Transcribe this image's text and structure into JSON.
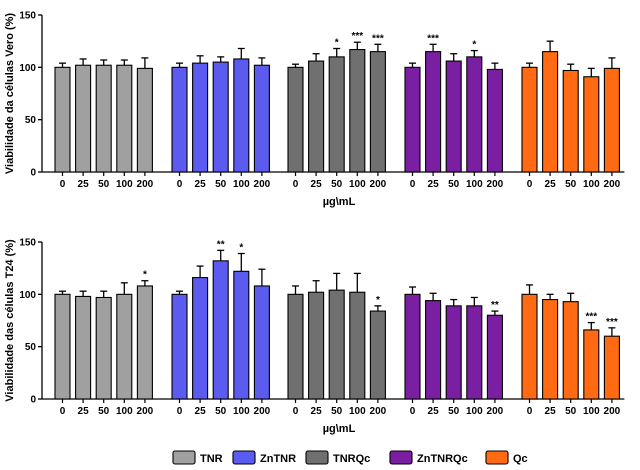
{
  "colors": {
    "TNR": "#a0a0a0",
    "ZnTNR": "#5b5bf0",
    "TNRQc": "#707070",
    "ZnTNRQc": "#7a1fa2",
    "Qc": "#ff6a13",
    "axis": "#000000"
  },
  "legend": [
    {
      "name": "TNR",
      "color_key": "TNR"
    },
    {
      "name": "ZnTNR",
      "color_key": "ZnTNR"
    },
    {
      "name": "TNRQc",
      "color_key": "TNRQc"
    },
    {
      "name": "ZnTNRQc",
      "color_key": "ZnTNRQc"
    },
    {
      "name": "Qc",
      "color_key": "Qc"
    }
  ],
  "chart_data": [
    {
      "type": "bar",
      "ylabel": "Viabilidade da células Vero (%)",
      "xlabel": "µg\\mL",
      "ylim": [
        0,
        150
      ],
      "yticks": [
        "0",
        "50",
        "100",
        "150"
      ],
      "categories": [
        "0",
        "25",
        "50",
        "100",
        "200"
      ],
      "series": [
        {
          "name": "TNR",
          "color_key": "TNR",
          "values": [
            100,
            102,
            102,
            102,
            99
          ],
          "errors": [
            4,
            6,
            5,
            5,
            10
          ],
          "sig": [
            "",
            "",
            "",
            "",
            ""
          ]
        },
        {
          "name": "ZnTNR",
          "color_key": "ZnTNR",
          "values": [
            100,
            104,
            105,
            108,
            102
          ],
          "errors": [
            4,
            7,
            5,
            10,
            7
          ],
          "sig": [
            "",
            "",
            "",
            "",
            ""
          ]
        },
        {
          "name": "TNRQc",
          "color_key": "TNRQc",
          "values": [
            100,
            106,
            110,
            117,
            115
          ],
          "errors": [
            3,
            7,
            8,
            7,
            7
          ],
          "sig": [
            "",
            "",
            "*",
            "***",
            "***"
          ]
        },
        {
          "name": "ZnTNRQc",
          "color_key": "ZnTNRQc",
          "values": [
            100,
            115,
            106,
            110,
            98
          ],
          "errors": [
            4,
            7,
            7,
            6,
            6
          ],
          "sig": [
            "",
            "***",
            "",
            "*",
            ""
          ]
        },
        {
          "name": "Qc",
          "color_key": "Qc",
          "values": [
            100,
            115,
            97,
            91,
            99
          ],
          "errors": [
            4,
            10,
            6,
            8,
            10
          ],
          "sig": [
            "",
            "",
            "",
            "",
            ""
          ]
        }
      ]
    },
    {
      "type": "bar",
      "ylabel": "Viabilidade das células T24 (%)",
      "xlabel": "µg\\mL",
      "ylim": [
        0,
        150
      ],
      "yticks": [
        "0",
        "50",
        "100",
        "150"
      ],
      "categories": [
        "0",
        "25",
        "50",
        "100",
        "200"
      ],
      "series": [
        {
          "name": "TNR",
          "color_key": "TNR",
          "values": [
            100,
            98,
            97,
            100,
            108
          ],
          "errors": [
            3,
            5,
            6,
            11,
            5
          ],
          "sig": [
            "",
            "",
            "",
            "",
            "*"
          ]
        },
        {
          "name": "ZnTNR",
          "color_key": "ZnTNR",
          "values": [
            100,
            116,
            132,
            122,
            108
          ],
          "errors": [
            3,
            11,
            10,
            17,
            16
          ],
          "sig": [
            "",
            "",
            "**",
            "*",
            ""
          ]
        },
        {
          "name": "TNRQc",
          "color_key": "TNRQc",
          "values": [
            100,
            102,
            104,
            102,
            84
          ],
          "errors": [
            8,
            11,
            16,
            18,
            5
          ],
          "sig": [
            "",
            "",
            "",
            "",
            "*"
          ]
        },
        {
          "name": "ZnTNRQc",
          "color_key": "ZnTNRQc",
          "values": [
            100,
            94,
            89,
            89,
            80
          ],
          "errors": [
            7,
            7,
            6,
            8,
            4
          ],
          "sig": [
            "",
            "",
            "",
            "",
            "**"
          ]
        },
        {
          "name": "Qc",
          "color_key": "Qc",
          "values": [
            100,
            95,
            93,
            66,
            60
          ],
          "errors": [
            9,
            5,
            8,
            7,
            8
          ],
          "sig": [
            "",
            "",
            "",
            "***",
            "***"
          ]
        }
      ]
    }
  ]
}
